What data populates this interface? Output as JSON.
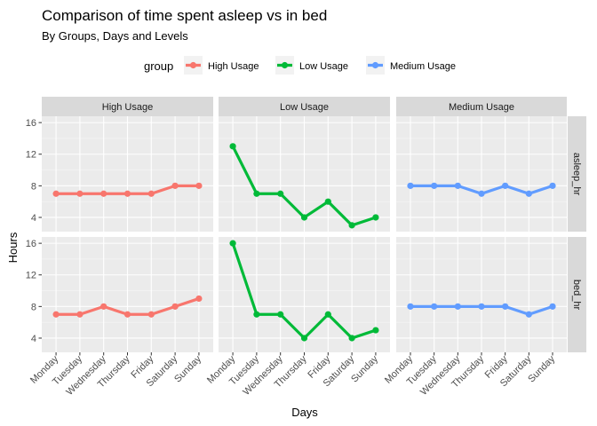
{
  "title": "Comparison of time spent asleep vs in bed",
  "subtitle": "By Groups, Days and Levels",
  "legend": {
    "title": "group"
  },
  "colors": {
    "High Usage": "#F8766D",
    "Low Usage": "#00BA38",
    "Medium Usage": "#619CFF"
  },
  "chart_data": {
    "type": "line",
    "title": "Comparison of time spent asleep vs in bed",
    "subtitle": "By Groups, Days and Levels",
    "xlabel": "Days",
    "ylabel": "Hours",
    "legend_title": "group",
    "legend_position": "top",
    "grid": true,
    "facet_cols": [
      "High Usage",
      "Low Usage",
      "Medium Usage"
    ],
    "facet_rows": [
      "asleep_hr",
      "bed_hr"
    ],
    "categories": [
      "Monday",
      "Tuesday",
      "Wednesday",
      "Thursday",
      "Friday",
      "Saturday",
      "Sunday"
    ],
    "ylim": [
      2.2,
      16.8
    ],
    "yticks": [
      4,
      8,
      12,
      16
    ],
    "series": [
      {
        "name": "High Usage",
        "color": "#F8766D",
        "asleep_hr": [
          7,
          7,
          7,
          7,
          7,
          8,
          8
        ],
        "bed_hr": [
          7,
          7,
          8,
          7,
          7,
          8,
          9
        ]
      },
      {
        "name": "Low Usage",
        "color": "#00BA38",
        "asleep_hr": [
          13,
          7,
          7,
          4,
          6,
          3,
          4
        ],
        "bed_hr": [
          16,
          7,
          7,
          4,
          7,
          4,
          5
        ]
      },
      {
        "name": "Medium Usage",
        "color": "#619CFF",
        "asleep_hr": [
          8,
          8,
          8,
          7,
          8,
          7,
          8
        ],
        "bed_hr": [
          8,
          8,
          8,
          8,
          8,
          7,
          8
        ]
      }
    ]
  }
}
